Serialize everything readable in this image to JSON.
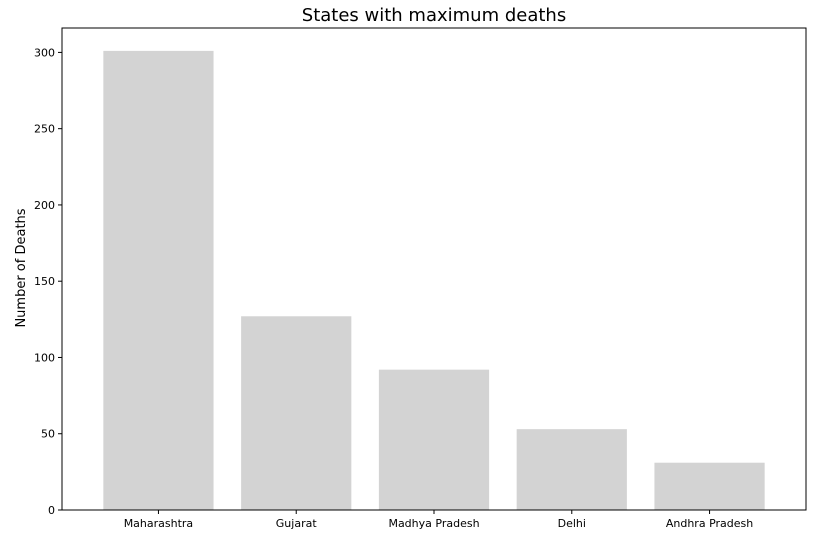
{
  "chart_data": {
    "type": "bar",
    "title": "States with maximum deaths",
    "xlabel": "",
    "ylabel": "Number of Deaths",
    "categories": [
      "Maharashtra",
      "Gujarat",
      "Madhya Pradesh",
      "Delhi",
      "Andhra Pradesh"
    ],
    "values": [
      301,
      127,
      92,
      53,
      31
    ],
    "ylim": [
      0,
      316
    ],
    "yticks": [
      0,
      50,
      100,
      150,
      200,
      250,
      300
    ],
    "grid": false,
    "legend": "none",
    "bar_color": "#d3d3d3"
  }
}
